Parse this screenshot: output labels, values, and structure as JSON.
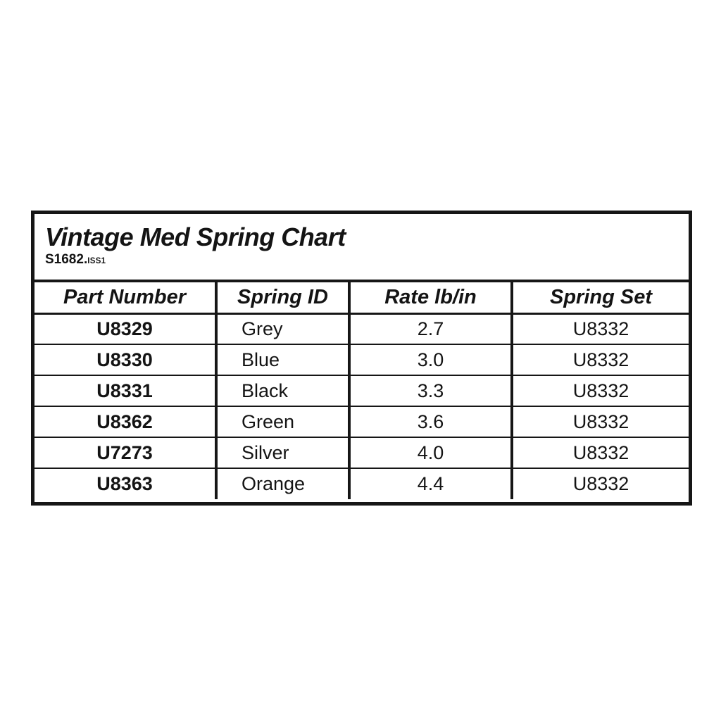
{
  "title_block": {
    "title": "Vintage Med Spring Chart",
    "doc_number": "S1682.",
    "doc_issue": "ISS1"
  },
  "table": {
    "columns": [
      "Part Number",
      "Spring ID",
      "Rate lb/in",
      "Spring Set"
    ],
    "rows": [
      {
        "part_number": "U8329",
        "spring_id": "Grey",
        "rate_lb_in": "2.7",
        "spring_set": "U8332"
      },
      {
        "part_number": "U8330",
        "spring_id": "Blue",
        "rate_lb_in": "3.0",
        "spring_set": "U8332"
      },
      {
        "part_number": "U8331",
        "spring_id": "Black",
        "rate_lb_in": "3.3",
        "spring_set": "U8332"
      },
      {
        "part_number": "U8362",
        "spring_id": "Green",
        "rate_lb_in": "3.6",
        "spring_set": "U8332"
      },
      {
        "part_number": "U7273",
        "spring_id": "Silver",
        "rate_lb_in": "4.0",
        "spring_set": "U8332"
      },
      {
        "part_number": "U8363",
        "spring_id": "Orange",
        "rate_lb_in": "4.4",
        "spring_set": "U8332"
      }
    ]
  },
  "colors": {
    "text": "#141414",
    "border": "#161616",
    "background": "#ffffff"
  }
}
